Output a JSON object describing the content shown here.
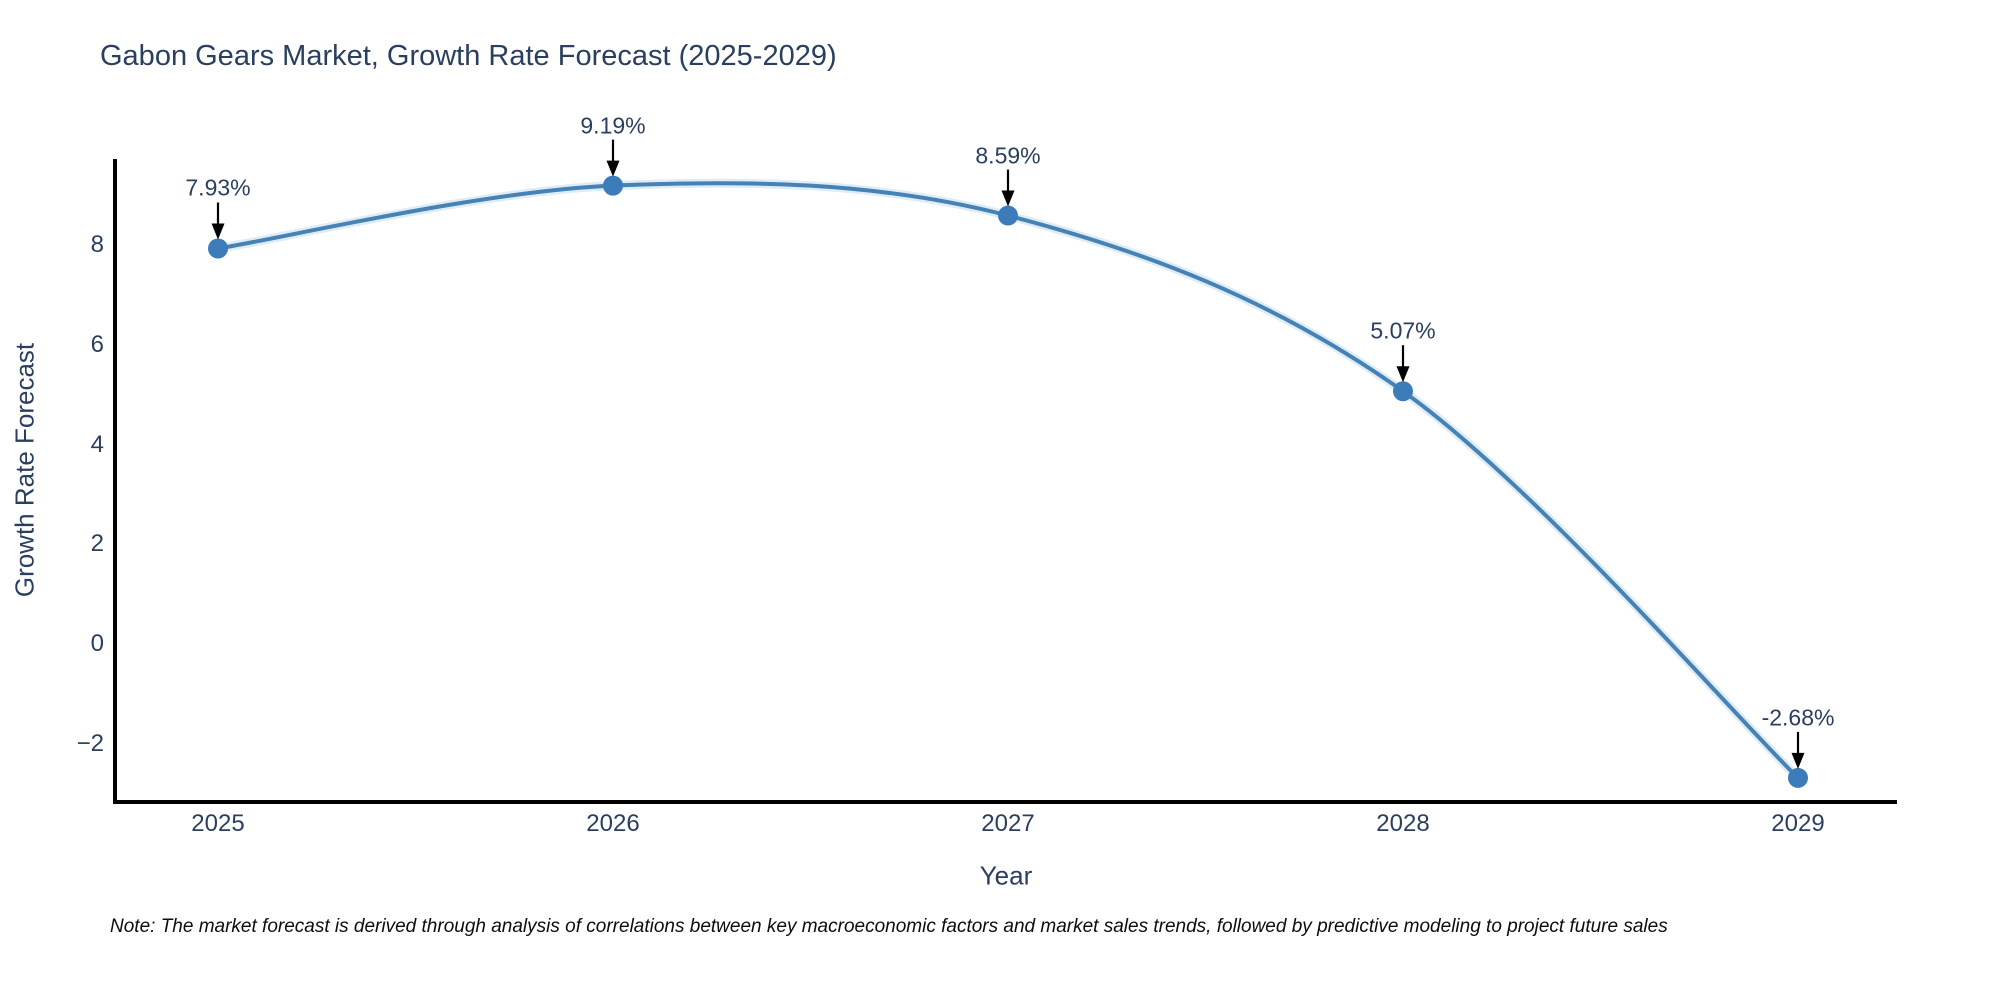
{
  "note": "Note: The market forecast is derived through analysis of correlations between key macroeconomic factors and market sales trends, followed by predictive modeling to project future sales",
  "colors": {
    "line": "#4682b4",
    "line_halo": "#c3dcf0",
    "marker": "#3d7cba",
    "text": "#2a3f5f",
    "axis": "#000000",
    "arrow": "#000000"
  },
  "chart_data": {
    "type": "line",
    "title": "Gabon Gears Market, Growth Rate Forecast (2025-2029)",
    "xlabel": "Year",
    "ylabel": "Growth Rate Forecast",
    "x": [
      2025,
      2026,
      2027,
      2028,
      2029
    ],
    "x_tick_labels": [
      "2025",
      "2026",
      "2027",
      "2028",
      "2029"
    ],
    "series": [
      {
        "name": "Growth Rate Forecast",
        "values": [
          7.93,
          9.19,
          8.59,
          5.07,
          -2.68
        ],
        "point_labels": [
          "7.93%",
          "9.19%",
          "8.59%",
          "5.07%",
          "-2.68%"
        ]
      }
    ],
    "y_ticks": [
      8,
      6,
      4,
      2,
      0,
      -2
    ],
    "y_tick_labels": [
      "8",
      "6",
      "4",
      "2",
      "0",
      "−2"
    ],
    "ylim": [
      -3.2,
      9.7
    ],
    "xlim_years": [
      2024.74,
      2029.25
    ],
    "grid": false,
    "legend": false,
    "line_shape": "spline",
    "annotations_arrows": "down"
  }
}
